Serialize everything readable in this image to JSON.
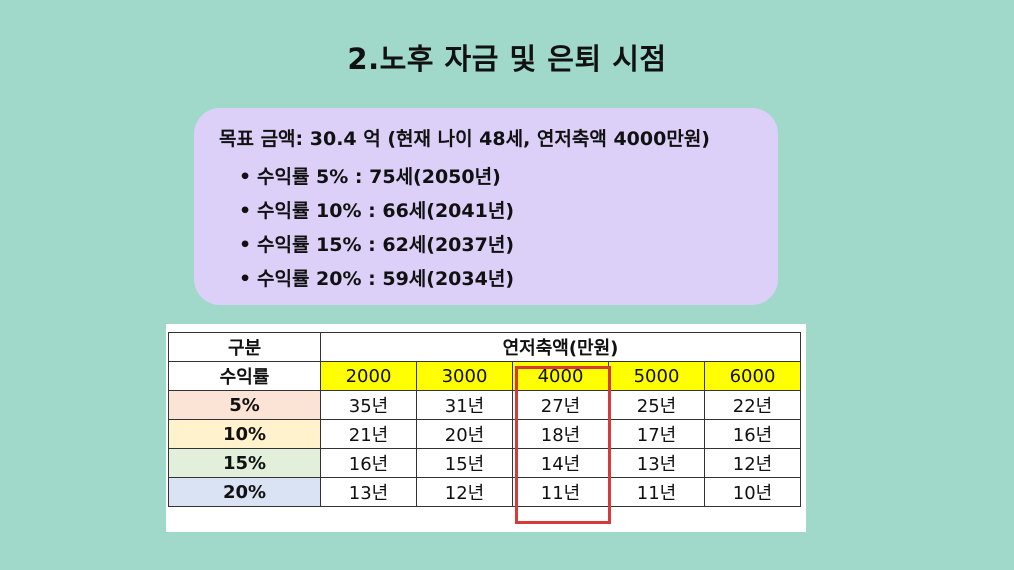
{
  "title": "2.노후 자금 및 은퇴 시점",
  "summary": {
    "goal": "목표 금액: 30.4 억 (현재 나이 48세, 연저축액 4000만원)",
    "items": [
      "수익률 5% : 75세(2050년)",
      "수익률 10% : 66세(2041년)",
      "수익률 15% : 62세(2037년)",
      "수익률 20% : 59세(2034년)"
    ]
  },
  "table": {
    "header_category": "구분",
    "header_group": "연저축액(만원)",
    "row_label_header": "수익률",
    "amounts": [
      "2000",
      "3000",
      "4000",
      "5000",
      "6000"
    ],
    "rows": [
      {
        "rate": "5%",
        "values": [
          "35년",
          "31년",
          "27년",
          "25년",
          "22년"
        ],
        "color": "#fbe3d6"
      },
      {
        "rate": "10%",
        "values": [
          "21년",
          "20년",
          "18년",
          "17년",
          "16년"
        ],
        "color": "#fff2cc"
      },
      {
        "rate": "15%",
        "values": [
          "16년",
          "15년",
          "14년",
          "13년",
          "12년"
        ],
        "color": "#e2efda"
      },
      {
        "rate": "20%",
        "values": [
          "13년",
          "12년",
          "11년",
          "11년",
          "10년"
        ],
        "color": "#dae3f3"
      }
    ],
    "highlight_color": "#d73a3a",
    "highlighted_amount": "4000"
  }
}
